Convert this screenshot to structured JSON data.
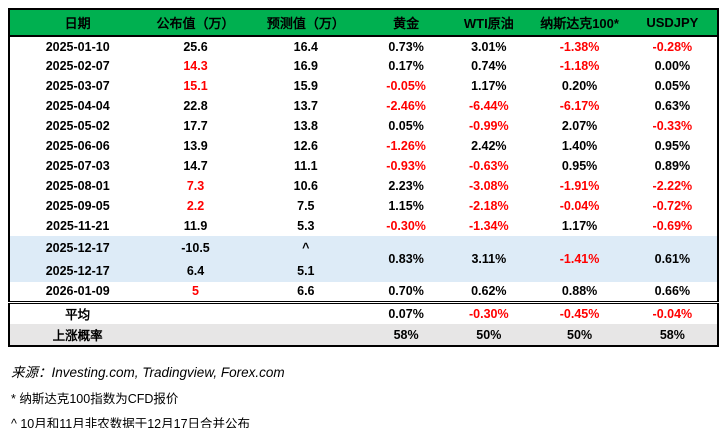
{
  "colors": {
    "header_green": "#00B050",
    "negative_red": "#FF0000",
    "highlight_blue": "#DDEBF7",
    "summary_gray": "#E7E6E6"
  },
  "table": {
    "headers": [
      "日期",
      "公布值（万）",
      "预测值（万）",
      "黄金",
      "WTI原油",
      "纳斯达克100*",
      "USDJPY"
    ],
    "rows": [
      {
        "cells": [
          {
            "t": "2025-01-10"
          },
          {
            "t": "25.6"
          },
          {
            "t": "16.4"
          },
          {
            "t": "0.73%"
          },
          {
            "t": "3.01%"
          },
          {
            "t": "-1.38%",
            "c": "red"
          },
          {
            "t": "-0.28%",
            "c": "red"
          }
        ]
      },
      {
        "cells": [
          {
            "t": "2025-02-07"
          },
          {
            "t": "14.3",
            "c": "red"
          },
          {
            "t": "16.9"
          },
          {
            "t": "0.17%"
          },
          {
            "t": "0.74%"
          },
          {
            "t": "-1.18%",
            "c": "red"
          },
          {
            "t": "0.00%"
          }
        ]
      },
      {
        "cells": [
          {
            "t": "2025-03-07"
          },
          {
            "t": "15.1",
            "c": "red"
          },
          {
            "t": "15.9"
          },
          {
            "t": "-0.05%",
            "c": "red"
          },
          {
            "t": "1.17%"
          },
          {
            "t": "0.20%"
          },
          {
            "t": "0.05%"
          }
        ]
      },
      {
        "cells": [
          {
            "t": "2025-04-04"
          },
          {
            "t": "22.8"
          },
          {
            "t": "13.7"
          },
          {
            "t": "-2.46%",
            "c": "red"
          },
          {
            "t": "-6.44%",
            "c": "red"
          },
          {
            "t": "-6.17%",
            "c": "red"
          },
          {
            "t": "0.63%"
          }
        ]
      },
      {
        "cells": [
          {
            "t": "2025-05-02"
          },
          {
            "t": "17.7"
          },
          {
            "t": "13.8"
          },
          {
            "t": "0.05%"
          },
          {
            "t": "-0.99%",
            "c": "red"
          },
          {
            "t": "2.07%"
          },
          {
            "t": "-0.33%",
            "c": "red"
          }
        ]
      },
      {
        "cells": [
          {
            "t": "2025-06-06"
          },
          {
            "t": "13.9"
          },
          {
            "t": "12.6"
          },
          {
            "t": "-1.26%",
            "c": "red"
          },
          {
            "t": "2.42%"
          },
          {
            "t": "1.40%"
          },
          {
            "t": "0.95%"
          }
        ]
      },
      {
        "cells": [
          {
            "t": "2025-07-03"
          },
          {
            "t": "14.7"
          },
          {
            "t": "11.1"
          },
          {
            "t": "-0.93%",
            "c": "red"
          },
          {
            "t": "-0.63%",
            "c": "red"
          },
          {
            "t": "0.95%"
          },
          {
            "t": "0.89%"
          }
        ]
      },
      {
        "cells": [
          {
            "t": "2025-08-01"
          },
          {
            "t": "7.3",
            "c": "red"
          },
          {
            "t": "10.6"
          },
          {
            "t": "2.23%"
          },
          {
            "t": "-3.08%",
            "c": "red"
          },
          {
            "t": "-1.91%",
            "c": "red"
          },
          {
            "t": "-2.22%",
            "c": "red"
          }
        ]
      },
      {
        "cells": [
          {
            "t": "2025-09-05"
          },
          {
            "t": "2.2",
            "c": "red"
          },
          {
            "t": "7.5"
          },
          {
            "t": "1.15%"
          },
          {
            "t": "-2.18%",
            "c": "red"
          },
          {
            "t": "-0.04%",
            "c": "red"
          },
          {
            "t": "-0.72%",
            "c": "red"
          }
        ]
      },
      {
        "cells": [
          {
            "t": "2025-11-21"
          },
          {
            "t": "11.9"
          },
          {
            "t": "5.3"
          },
          {
            "t": "-0.30%",
            "c": "red"
          },
          {
            "t": "-1.34%",
            "c": "red"
          },
          {
            "t": "1.17%"
          },
          {
            "t": "-0.69%",
            "c": "red"
          }
        ]
      },
      {
        "highlight": true,
        "cells": [
          {
            "t": "2025-12-17"
          },
          {
            "t": "-10.5"
          },
          {
            "t": "^"
          },
          {
            "t": "0.83%",
            "rowspan": 2
          },
          {
            "t": "3.11%",
            "rowspan": 2
          },
          {
            "t": "-1.41%",
            "c": "red",
            "rowspan": 2
          },
          {
            "t": "0.61%",
            "rowspan": 2
          }
        ]
      },
      {
        "highlight": true,
        "cells": [
          {
            "t": "2025-12-17"
          },
          {
            "t": "6.4"
          },
          {
            "t": "5.1"
          }
        ]
      },
      {
        "cells": [
          {
            "t": "2026-01-09"
          },
          {
            "t": "5",
            "c": "red"
          },
          {
            "t": "6.6"
          },
          {
            "t": "0.70%"
          },
          {
            "t": "0.62%"
          },
          {
            "t": "0.88%"
          },
          {
            "t": "0.66%"
          }
        ]
      }
    ],
    "summary": [
      {
        "label": "平均",
        "divider": true,
        "values": [
          {
            "t": "0.07%"
          },
          {
            "t": "-0.30%",
            "c": "red"
          },
          {
            "t": "-0.45%",
            "c": "red"
          },
          {
            "t": "-0.04%",
            "c": "red"
          }
        ]
      },
      {
        "label": "上涨概率",
        "shade": true,
        "values": [
          {
            "t": "58%"
          },
          {
            "t": "50%"
          },
          {
            "t": "50%"
          },
          {
            "t": "58%"
          }
        ]
      }
    ]
  },
  "footer": {
    "source": "来源：Investing.com, Tradingview, Forex.com",
    "note_cfd": "* 纳斯达克100指数为CFD报价",
    "note_merged": "^ 10月和11月非农数据于12月17日合并公布"
  }
}
